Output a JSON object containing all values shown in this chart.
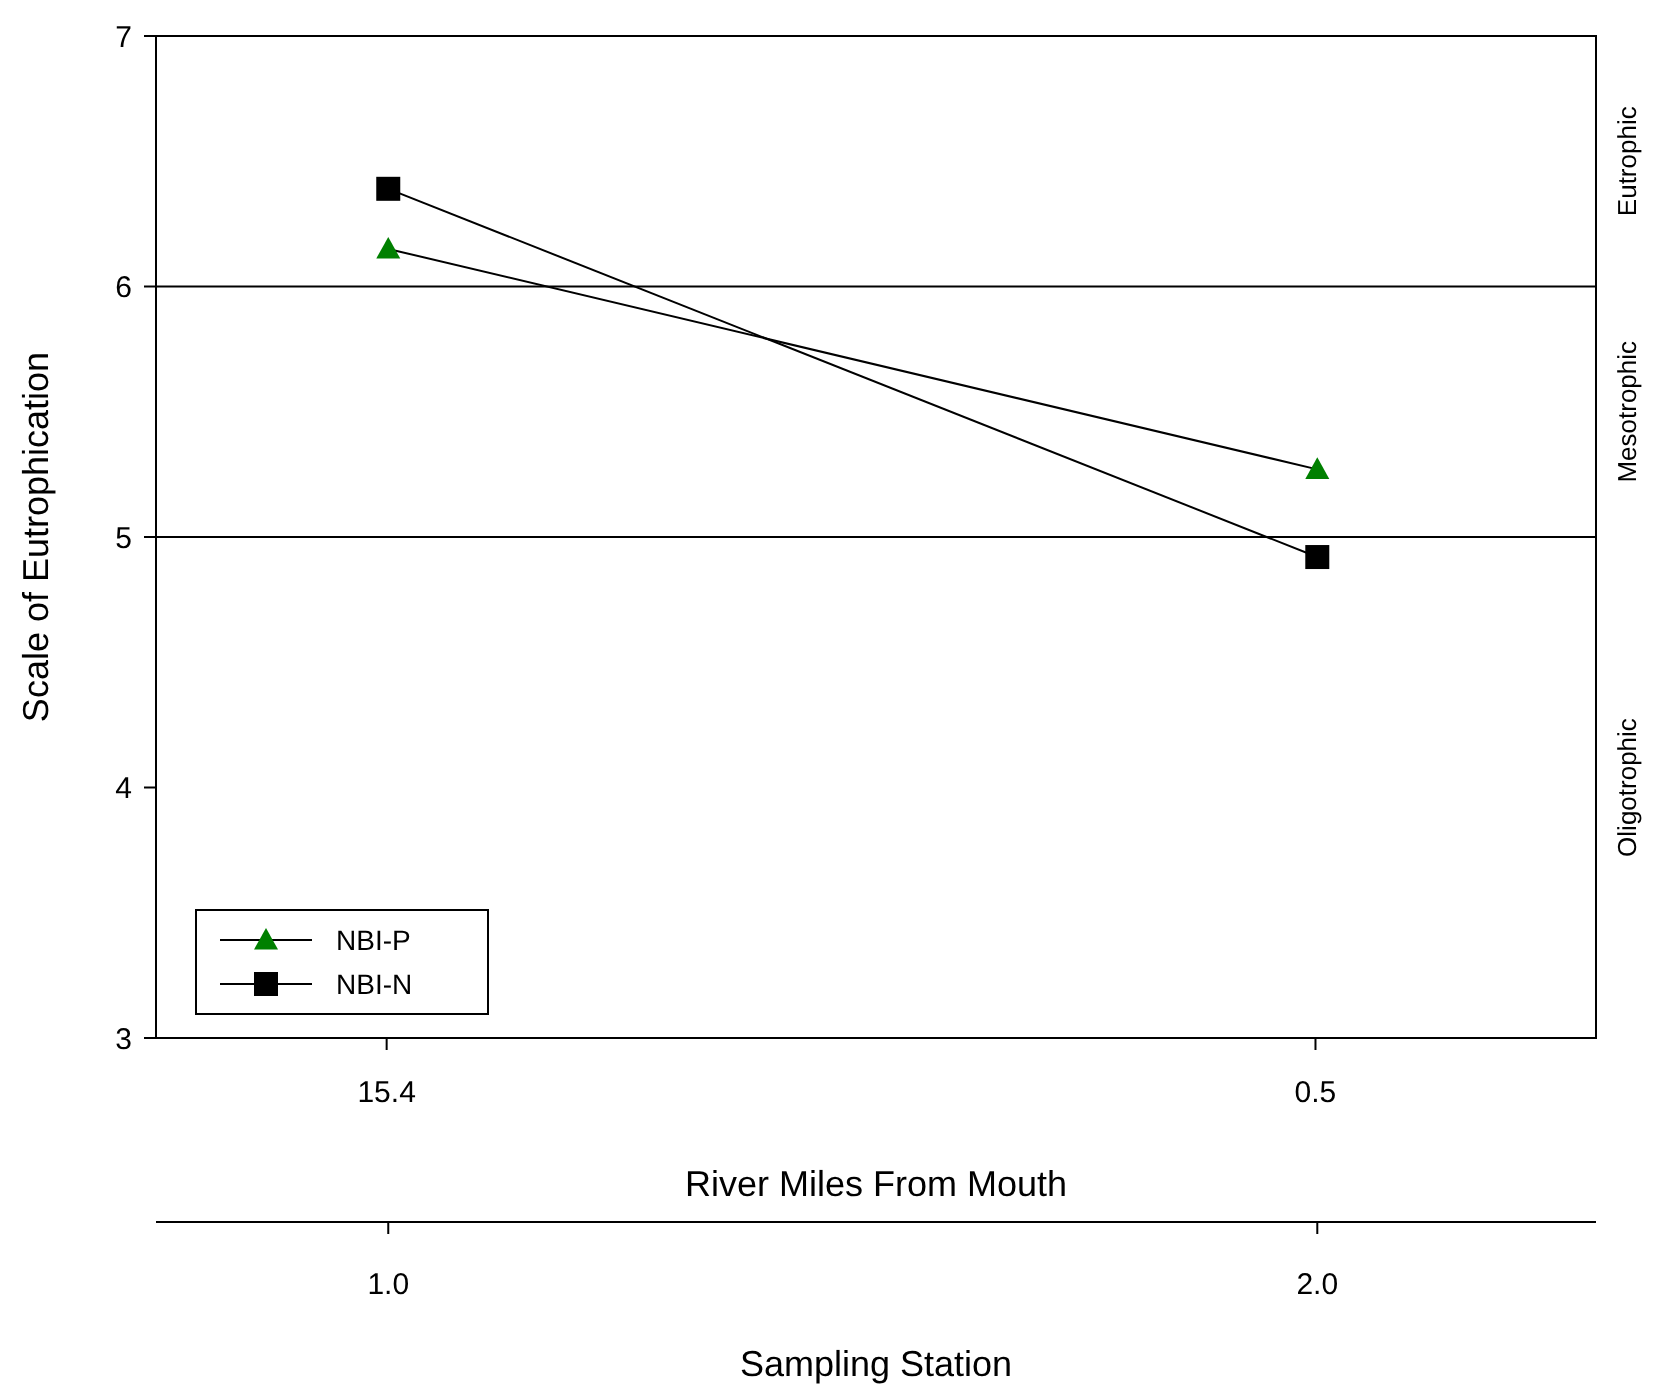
{
  "chart_data": {
    "type": "line",
    "ylabel": "Scale of Eutrophication",
    "xlabel": "Sampling Station",
    "x2label": "River Miles From Mouth",
    "x": [
      1,
      2
    ],
    "xlim": [
      0.75,
      2.3
    ],
    "xticks": [
      {
        "value": 1,
        "label": "1.0"
      },
      {
        "value": 2,
        "label": "2.0"
      }
    ],
    "x2lim": [
      19.1,
      -4.0
    ],
    "x2ticks": [
      15.4,
      0.5
    ],
    "ylim": [
      3,
      7
    ],
    "yticks": [
      3,
      4,
      5,
      6,
      7
    ],
    "series": [
      {
        "name": "NBI-P",
        "color": "#008000",
        "marker": "triangle",
        "values": [
          6.15,
          5.27
        ]
      },
      {
        "name": "NBI-N",
        "color": "#000000",
        "marker": "square",
        "values": [
          6.39,
          4.92
        ]
      }
    ],
    "ref_lines": [
      {
        "axis": "y",
        "value": 6,
        "color": "#000000"
      },
      {
        "axis": "y",
        "value": 5,
        "color": "#000000"
      }
    ],
    "annotations": [
      "Eutrophic",
      "Mesotrophic",
      "Oligotrophic"
    ],
    "grid": false,
    "legend": "bottom left",
    "line_style": "solid"
  }
}
